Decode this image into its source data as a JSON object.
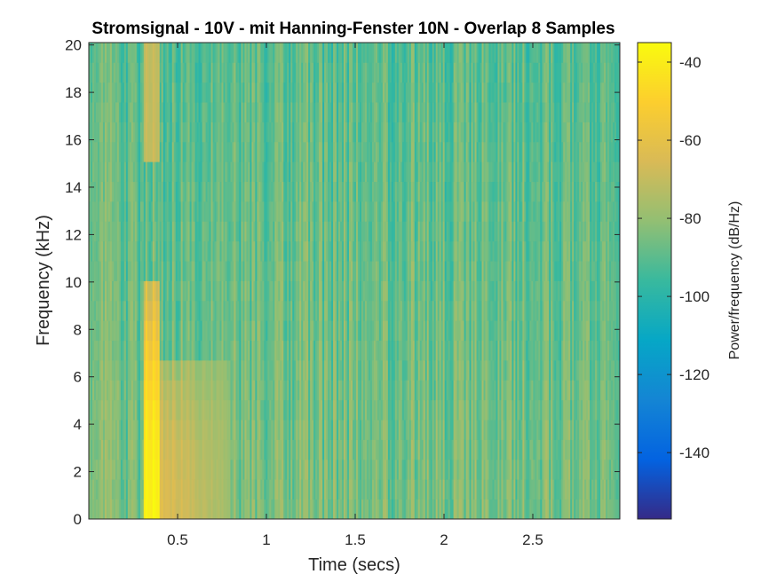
{
  "chart_data": {
    "type": "heatmap",
    "title": "Stromsignal - 10V - mit Hanning-Fenster 10N - Overlap 8 Samples",
    "xlabel": "Time (secs)",
    "ylabel": "Frequency (kHz)",
    "colorbar_label": "Power/frequency (dB/Hz)",
    "xlim": [
      0.0,
      2.99
    ],
    "ylim": [
      0,
      20.1
    ],
    "x_ticks": [
      0.5,
      1,
      1.5,
      2,
      2.5
    ],
    "x_tick_labels": [
      "0.5",
      "1",
      "1.5",
      "2",
      "2.5"
    ],
    "y_ticks": [
      0,
      2,
      4,
      6,
      8,
      10,
      12,
      14,
      16,
      18,
      20
    ],
    "y_tick_labels": [
      "0",
      "2",
      "4",
      "6",
      "8",
      "10",
      "12",
      "14",
      "16",
      "18",
      "20"
    ],
    "clim": [
      -157,
      -35
    ],
    "cbar_ticks": [
      -40,
      -60,
      -80,
      -100,
      -120,
      -140
    ],
    "cbar_tick_labels": [
      "-40",
      "-60",
      "-80",
      "-100",
      "-120",
      "-140"
    ],
    "colormap": "parula",
    "colormap_stops": [
      "#352a87",
      "#0363e1",
      "#1485d4",
      "#06a7c6",
      "#38b99e",
      "#92bf73",
      "#d9ba56",
      "#fcce2e",
      "#f9fb0e"
    ],
    "background_level_db": -85,
    "noise_floor_db": -100,
    "events": [
      {
        "t_start": 0.31,
        "t_end": 0.4,
        "f_max": 10.0,
        "peak_db": -38,
        "description": "strong broadband burst"
      },
      {
        "t_start": 0.4,
        "t_end": 0.8,
        "f_max": 7.0,
        "peak_db": -62,
        "description": "decaying low-frequency energy"
      },
      {
        "t_start": 0.31,
        "t_end": 0.4,
        "f_min": 15.0,
        "f_max": 20.0,
        "peak_db": -70,
        "description": "upper band"
      }
    ]
  }
}
